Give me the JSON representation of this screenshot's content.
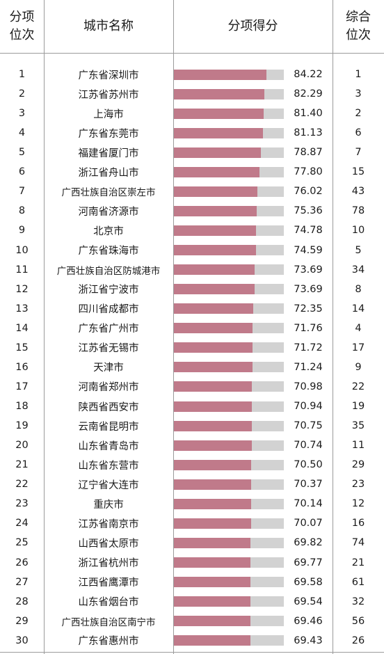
{
  "headers": {
    "rank": "分项\n位次",
    "city": "城市名称",
    "score": "分项得分",
    "overall": "综合\n位次"
  },
  "chart_data": {
    "type": "bar",
    "orientation": "horizontal",
    "title": "",
    "xlabel": "",
    "ylabel": "",
    "ranks": [
      1,
      2,
      3,
      4,
      5,
      6,
      7,
      8,
      9,
      10,
      11,
      12,
      13,
      14,
      15,
      16,
      17,
      18,
      19,
      20,
      21,
      22,
      23,
      24,
      25,
      26,
      27,
      28,
      29,
      30
    ],
    "categories": [
      "广东省深圳市",
      "江苏省苏州市",
      "上海市",
      "广东省东莞市",
      "福建省厦门市",
      "浙江省舟山市",
      "广西壮族自治区崇左市",
      "河南省济源市",
      "北京市",
      "广东省珠海市",
      "广西壮族自治区防城港市",
      "浙江省宁波市",
      "四川省成都市",
      "广东省广州市",
      "江苏省无锡市",
      "天津市",
      "河南省郑州市",
      "陕西省西安市",
      "云南省昆明市",
      "山东省青岛市",
      "山东省东营市",
      "辽宁省大连市",
      "重庆市",
      "江苏省南京市",
      "山西省太原市",
      "浙江省杭州市",
      "江西省鹰潭市",
      "山东省烟台市",
      "广西壮族自治区南宁市",
      "广东省惠州市"
    ],
    "values": [
      84.22,
      82.29,
      81.4,
      81.13,
      78.87,
      77.8,
      76.02,
      75.36,
      74.78,
      74.59,
      73.69,
      73.69,
      72.35,
      71.76,
      71.72,
      71.24,
      70.98,
      70.94,
      70.75,
      70.74,
      70.5,
      70.37,
      70.14,
      70.07,
      69.82,
      69.77,
      69.58,
      69.54,
      69.46,
      69.43
    ],
    "value_labels": [
      "84.22",
      "82.29",
      "81.40",
      "81.13",
      "78.87",
      "77.80",
      "76.02",
      "75.36",
      "74.78",
      "74.59",
      "73.69",
      "73.69",
      "72.35",
      "71.76",
      "71.72",
      "71.24",
      "70.98",
      "70.94",
      "70.75",
      "70.74",
      "70.50",
      "70.37",
      "70.14",
      "70.07",
      "69.82",
      "69.77",
      "69.58",
      "69.54",
      "69.46",
      "69.43"
    ],
    "overall_ranks": [
      1,
      3,
      2,
      6,
      7,
      15,
      43,
      78,
      10,
      5,
      34,
      8,
      14,
      4,
      17,
      9,
      22,
      19,
      35,
      11,
      29,
      23,
      12,
      16,
      74,
      21,
      61,
      32,
      56,
      26
    ],
    "xlim": [
      0,
      100
    ],
    "colors": {
      "bar": "#c07a8a",
      "track": "#d2d2d2",
      "grid": "#9a9a9a"
    },
    "grid": true,
    "legend": "none"
  }
}
